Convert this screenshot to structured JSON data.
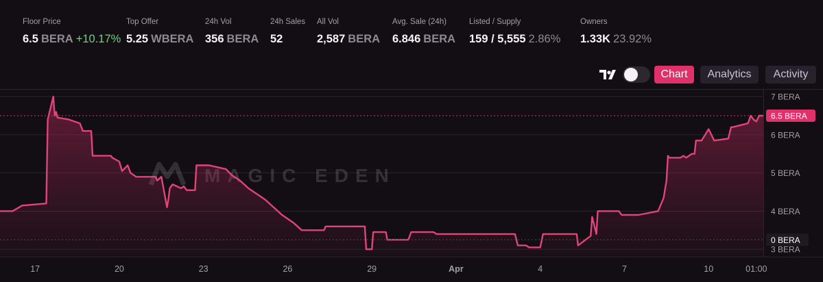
{
  "stats": {
    "floor_price": {
      "label": "Floor Price",
      "value": "6.5",
      "unit": "BERA",
      "change": "+10.17%"
    },
    "top_offer": {
      "label": "Top Offer",
      "value": "5.25",
      "unit": "WBERA"
    },
    "vol_24h": {
      "label": "24h Vol",
      "value": "356",
      "unit": "BERA"
    },
    "sales_24h": {
      "label": "24h Sales",
      "value": "52"
    },
    "all_vol": {
      "label": "All Vol",
      "value": "2,587",
      "unit": "BERA"
    },
    "avg_sale": {
      "label": "Avg. Sale (24h)",
      "value": "6.846",
      "unit": "BERA"
    },
    "listed_supply": {
      "label": "Listed / Supply",
      "value": "159 / 5,555",
      "pct": "2.86%"
    },
    "owners": {
      "label": "Owners",
      "value": "1.33K",
      "pct": "23.92%"
    }
  },
  "toolbar": {
    "tabs": [
      {
        "label": "Chart",
        "active": true
      },
      {
        "label": "Analytics",
        "active": false
      },
      {
        "label": "Activity",
        "active": false
      }
    ],
    "logo_icon": "tradingview-icon",
    "toggle_state": "off"
  },
  "chart_data": {
    "type": "area",
    "watermark": "MAGIC EDEN",
    "ylim": [
      2.95,
      7.2
    ],
    "y_ticks": [
      {
        "value": 3,
        "label": "3 BERA"
      },
      {
        "value": 4,
        "label": "4 BERA"
      },
      {
        "value": 5,
        "label": "5 BERA"
      },
      {
        "value": 6,
        "label": "6 BERA"
      },
      {
        "value": 7,
        "label": "7 BERA"
      }
    ],
    "x_ticks": [
      {
        "t": 0,
        "label": "17"
      },
      {
        "t": 3,
        "label": "20"
      },
      {
        "t": 6,
        "label": "23"
      },
      {
        "t": 9,
        "label": "26"
      },
      {
        "t": 12,
        "label": "29"
      },
      {
        "t": 15,
        "label": "Apr"
      },
      {
        "t": 18,
        "label": "4"
      },
      {
        "t": 21,
        "label": "7"
      },
      {
        "t": 24,
        "label": "10"
      },
      {
        "t": 25.7,
        "label": "01:00"
      }
    ],
    "current_price": {
      "value": 6.5,
      "label": "6.5 BERA"
    },
    "zero_marker": {
      "value": 3.25,
      "label": "0 BERA"
    },
    "xlim": [
      -1.25,
      25.95
    ],
    "series": [
      {
        "x": [
          -1.25,
          -0.8,
          -0.45,
          -0.4,
          0.4,
          0.45,
          0.65,
          0.7,
          0.75,
          0.8,
          1.2,
          1.6,
          1.7,
          2.0,
          2.05,
          2.7,
          2.75,
          3.0,
          3.1,
          3.3,
          3.4,
          3.6,
          4.3,
          4.35,
          4.5,
          4.7,
          4.75,
          4.8,
          4.9,
          5.2,
          5.3,
          5.4,
          5.7,
          5.75,
          6.1,
          6.2,
          6.8,
          7.0,
          7.3,
          7.6,
          8.0,
          8.2,
          8.5,
          8.8,
          9.2,
          9.5,
          10.3,
          10.35,
          10.5,
          11.5,
          11.75,
          11.8,
          12.0,
          12.05,
          12.5,
          12.55,
          13.3,
          13.4,
          14.2,
          14.3,
          17.0,
          17.1,
          17.2,
          17.5,
          17.6,
          18.0,
          18.1,
          18.5,
          19.3,
          19.35,
          19.8,
          19.85,
          20.0,
          20.05,
          20.8,
          20.9,
          20.95,
          21.5,
          22.2,
          22.4,
          22.5,
          22.55,
          22.6,
          23.0,
          23.1,
          23.2,
          23.4,
          23.5,
          23.55,
          23.75,
          24.0,
          24.2,
          24.7,
          24.8,
          24.85,
          25.4,
          25.5,
          25.6,
          25.7,
          25.8,
          25.95
        ],
        "y": [
          4.0,
          4.0,
          4.15,
          4.15,
          4.2,
          6.4,
          7.0,
          6.5,
          6.6,
          6.45,
          6.4,
          6.3,
          6.1,
          6.1,
          5.45,
          5.45,
          5.4,
          5.3,
          5.05,
          5.2,
          5.0,
          4.9,
          4.9,
          4.8,
          4.9,
          4.1,
          4.3,
          4.6,
          4.7,
          4.6,
          4.65,
          4.55,
          4.55,
          5.2,
          5.2,
          5.2,
          5.1,
          4.95,
          4.8,
          4.6,
          4.4,
          4.3,
          4.1,
          3.9,
          3.7,
          3.5,
          3.5,
          3.6,
          3.6,
          3.6,
          3.6,
          3.0,
          3.0,
          3.45,
          3.45,
          3.25,
          3.25,
          3.45,
          3.45,
          3.4,
          3.4,
          3.4,
          3.1,
          3.1,
          3.05,
          3.05,
          3.4,
          3.4,
          3.4,
          3.1,
          3.35,
          3.85,
          3.4,
          4.0,
          4.0,
          3.9,
          3.9,
          3.9,
          4.0,
          4.35,
          4.8,
          5.45,
          5.4,
          5.4,
          5.45,
          5.4,
          5.5,
          5.5,
          5.85,
          5.85,
          6.15,
          5.85,
          5.9,
          6.2,
          6.2,
          6.3,
          6.5,
          6.4,
          6.35,
          6.5,
          6.5
        ]
      }
    ]
  },
  "colors": {
    "background": "#120e14",
    "accent": "#e0316b",
    "line": "#e04478",
    "positive": "#6fd17a",
    "muted_text": "#8f8995",
    "grid": "#2b2430"
  }
}
